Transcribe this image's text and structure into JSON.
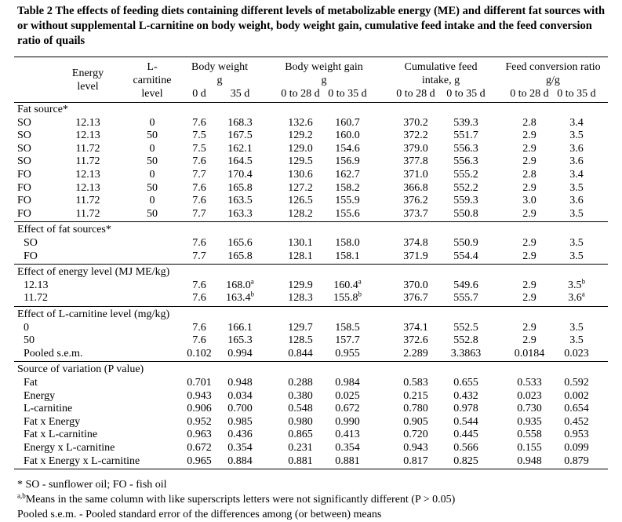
{
  "title": {
    "label": "Table 2",
    "text": "The effects of feeding diets containing different levels of metabolizable energy (ME) and different fat sources with or without supplemental L-carnitine on body weight, body weight gain, cumulative feed intake and the feed conversion ratio of quails"
  },
  "header": {
    "row_label_cols": [
      {
        "lines": [
          "Energy",
          "level"
        ]
      },
      {
        "lines": [
          "L-",
          "carnitine",
          "level"
        ]
      }
    ],
    "groups": [
      {
        "lines": [
          "Body weight",
          "g"
        ],
        "sub": [
          "0 d",
          "35 d"
        ]
      },
      {
        "lines": [
          "Body weight gain",
          "g"
        ],
        "sub": [
          "0 to 28 d",
          "0 to 35 d"
        ]
      },
      {
        "lines": [
          "Cumulative feed",
          "intake, g"
        ],
        "sub": [
          "0 to 28 d",
          "0 to 35 d"
        ]
      },
      {
        "lines": [
          "Feed conversion ratio",
          "g/g"
        ],
        "sub": [
          "0 to 28 d",
          "0 to 35 d"
        ]
      }
    ]
  },
  "sections": [
    {
      "title": "Fat source*",
      "rows": [
        [
          "SO",
          "12.13",
          "0",
          "7.6",
          "168.3",
          "132.6",
          "160.7",
          "370.2",
          "539.3",
          "2.8",
          "3.4"
        ],
        [
          "SO",
          "12.13",
          "50",
          "7.5",
          "167.5",
          "129.2",
          "160.0",
          "372.2",
          "551.7",
          "2.9",
          "3.5"
        ],
        [
          "SO",
          "11.72",
          "0",
          "7.5",
          "162.1",
          "129.0",
          "154.6",
          "379.0",
          "556.3",
          "2.9",
          "3.6"
        ],
        [
          "SO",
          "11.72",
          "50",
          "7.6",
          "164.5",
          "129.5",
          "156.9",
          "377.8",
          "556.3",
          "2.9",
          "3.6"
        ],
        [
          "FO",
          "12.13",
          "0",
          "7.7",
          "170.4",
          "130.6",
          "162.7",
          "371.0",
          "555.2",
          "2.8",
          "3.4"
        ],
        [
          "FO",
          "12.13",
          "50",
          "7.6",
          "165.8",
          "127.2",
          "158.2",
          "366.8",
          "552.2",
          "2.9",
          "3.5"
        ],
        [
          "FO",
          "11.72",
          "0",
          "7.6",
          "163.5",
          "126.5",
          "155.9",
          "376.2",
          "559.3",
          "3.0",
          "3.6"
        ],
        [
          "FO",
          "11.72",
          "50",
          "7.7",
          "163.3",
          "128.2",
          "155.6",
          "373.7",
          "550.8",
          "2.9",
          "3.5"
        ]
      ]
    },
    {
      "title": "Effect of fat sources*",
      "rows": [
        [
          "SO",
          "7.6",
          "165.6",
          "130.1",
          "158.0",
          "374.8",
          "550.9",
          "2.9",
          "3.5"
        ],
        [
          "FO",
          "7.7",
          "165.8",
          "128.1",
          "158.1",
          "371.9",
          "554.4",
          "2.9",
          "3.5"
        ]
      ]
    },
    {
      "title": "Effect of energy level (MJ ME/kg)",
      "rows": [
        [
          "12.13",
          "7.6",
          {
            "text": "168.0",
            "sup": "a"
          },
          "129.9",
          {
            "text": "160.4",
            "sup": "a"
          },
          "370.0",
          "549.6",
          "2.9",
          {
            "text": "3.5",
            "sup": "b"
          }
        ],
        [
          "11.72",
          "7.6",
          {
            "text": "163.4",
            "sup": "b"
          },
          "128.3",
          {
            "text": "155.8",
            "sup": "b"
          },
          "376.7",
          "555.7",
          "2.9",
          {
            "text": "3.6",
            "sup": "a"
          }
        ]
      ]
    },
    {
      "title": "Effect of L-carnitine level (mg/kg)",
      "rows": [
        [
          "0",
          "7.6",
          "166.1",
          "129.7",
          "158.5",
          "374.1",
          "552.5",
          "2.9",
          "3.5"
        ],
        [
          "50",
          "7.6",
          "165.3",
          "128.5",
          "157.7",
          "372.6",
          "552.8",
          "2.9",
          "3.5"
        ],
        [
          "Pooled s.e.m.",
          "0.102",
          "0.994",
          "0.844",
          "0.955",
          "2.289",
          "3.3863",
          "0.0184",
          "0.023"
        ]
      ]
    },
    {
      "title": "Source of variation (P value)",
      "rows": [
        [
          "Fat",
          "0.701",
          "0.948",
          "0.288",
          "0.984",
          "0.583",
          "0.655",
          "0.533",
          "0.592"
        ],
        [
          "Energy",
          "0.943",
          "0.034",
          "0.380",
          "0.025",
          "0.215",
          "0.432",
          "0.023",
          "0.002"
        ],
        [
          "L-carnitine",
          "0.906",
          "0.700",
          "0.548",
          "0.672",
          "0.780",
          "0.978",
          "0.730",
          "0.654"
        ],
        [
          "Fat x Energy",
          "0.952",
          "0.985",
          "0.980",
          "0.990",
          "0.905",
          "0.544",
          "0.935",
          "0.452"
        ],
        [
          "Fat x L-carnitine",
          "0.963",
          "0.436",
          "0.865",
          "0.413",
          "0.720",
          "0.445",
          "0.558",
          "0.953"
        ],
        [
          "Energy x L-carnitine",
          "0.672",
          "0.354",
          "0.231",
          "0.354",
          "0.943",
          "0.566",
          "0.155",
          "0.099"
        ],
        [
          "Fat x Energy x L-carnitine",
          "0.965",
          "0.884",
          "0.881",
          "0.881",
          "0.817",
          "0.825",
          "0.948",
          "0.879"
        ]
      ]
    }
  ],
  "footnotes": [
    {
      "text": "* SO - sunflower oil; FO - fish oil"
    },
    {
      "sup": "a,b",
      "text": "Means in the same column with like superscripts letters were not significantly different (P > 0.05)"
    },
    {
      "text": "Pooled s.e.m. - Pooled standard error of the differences among (or between) means"
    }
  ]
}
